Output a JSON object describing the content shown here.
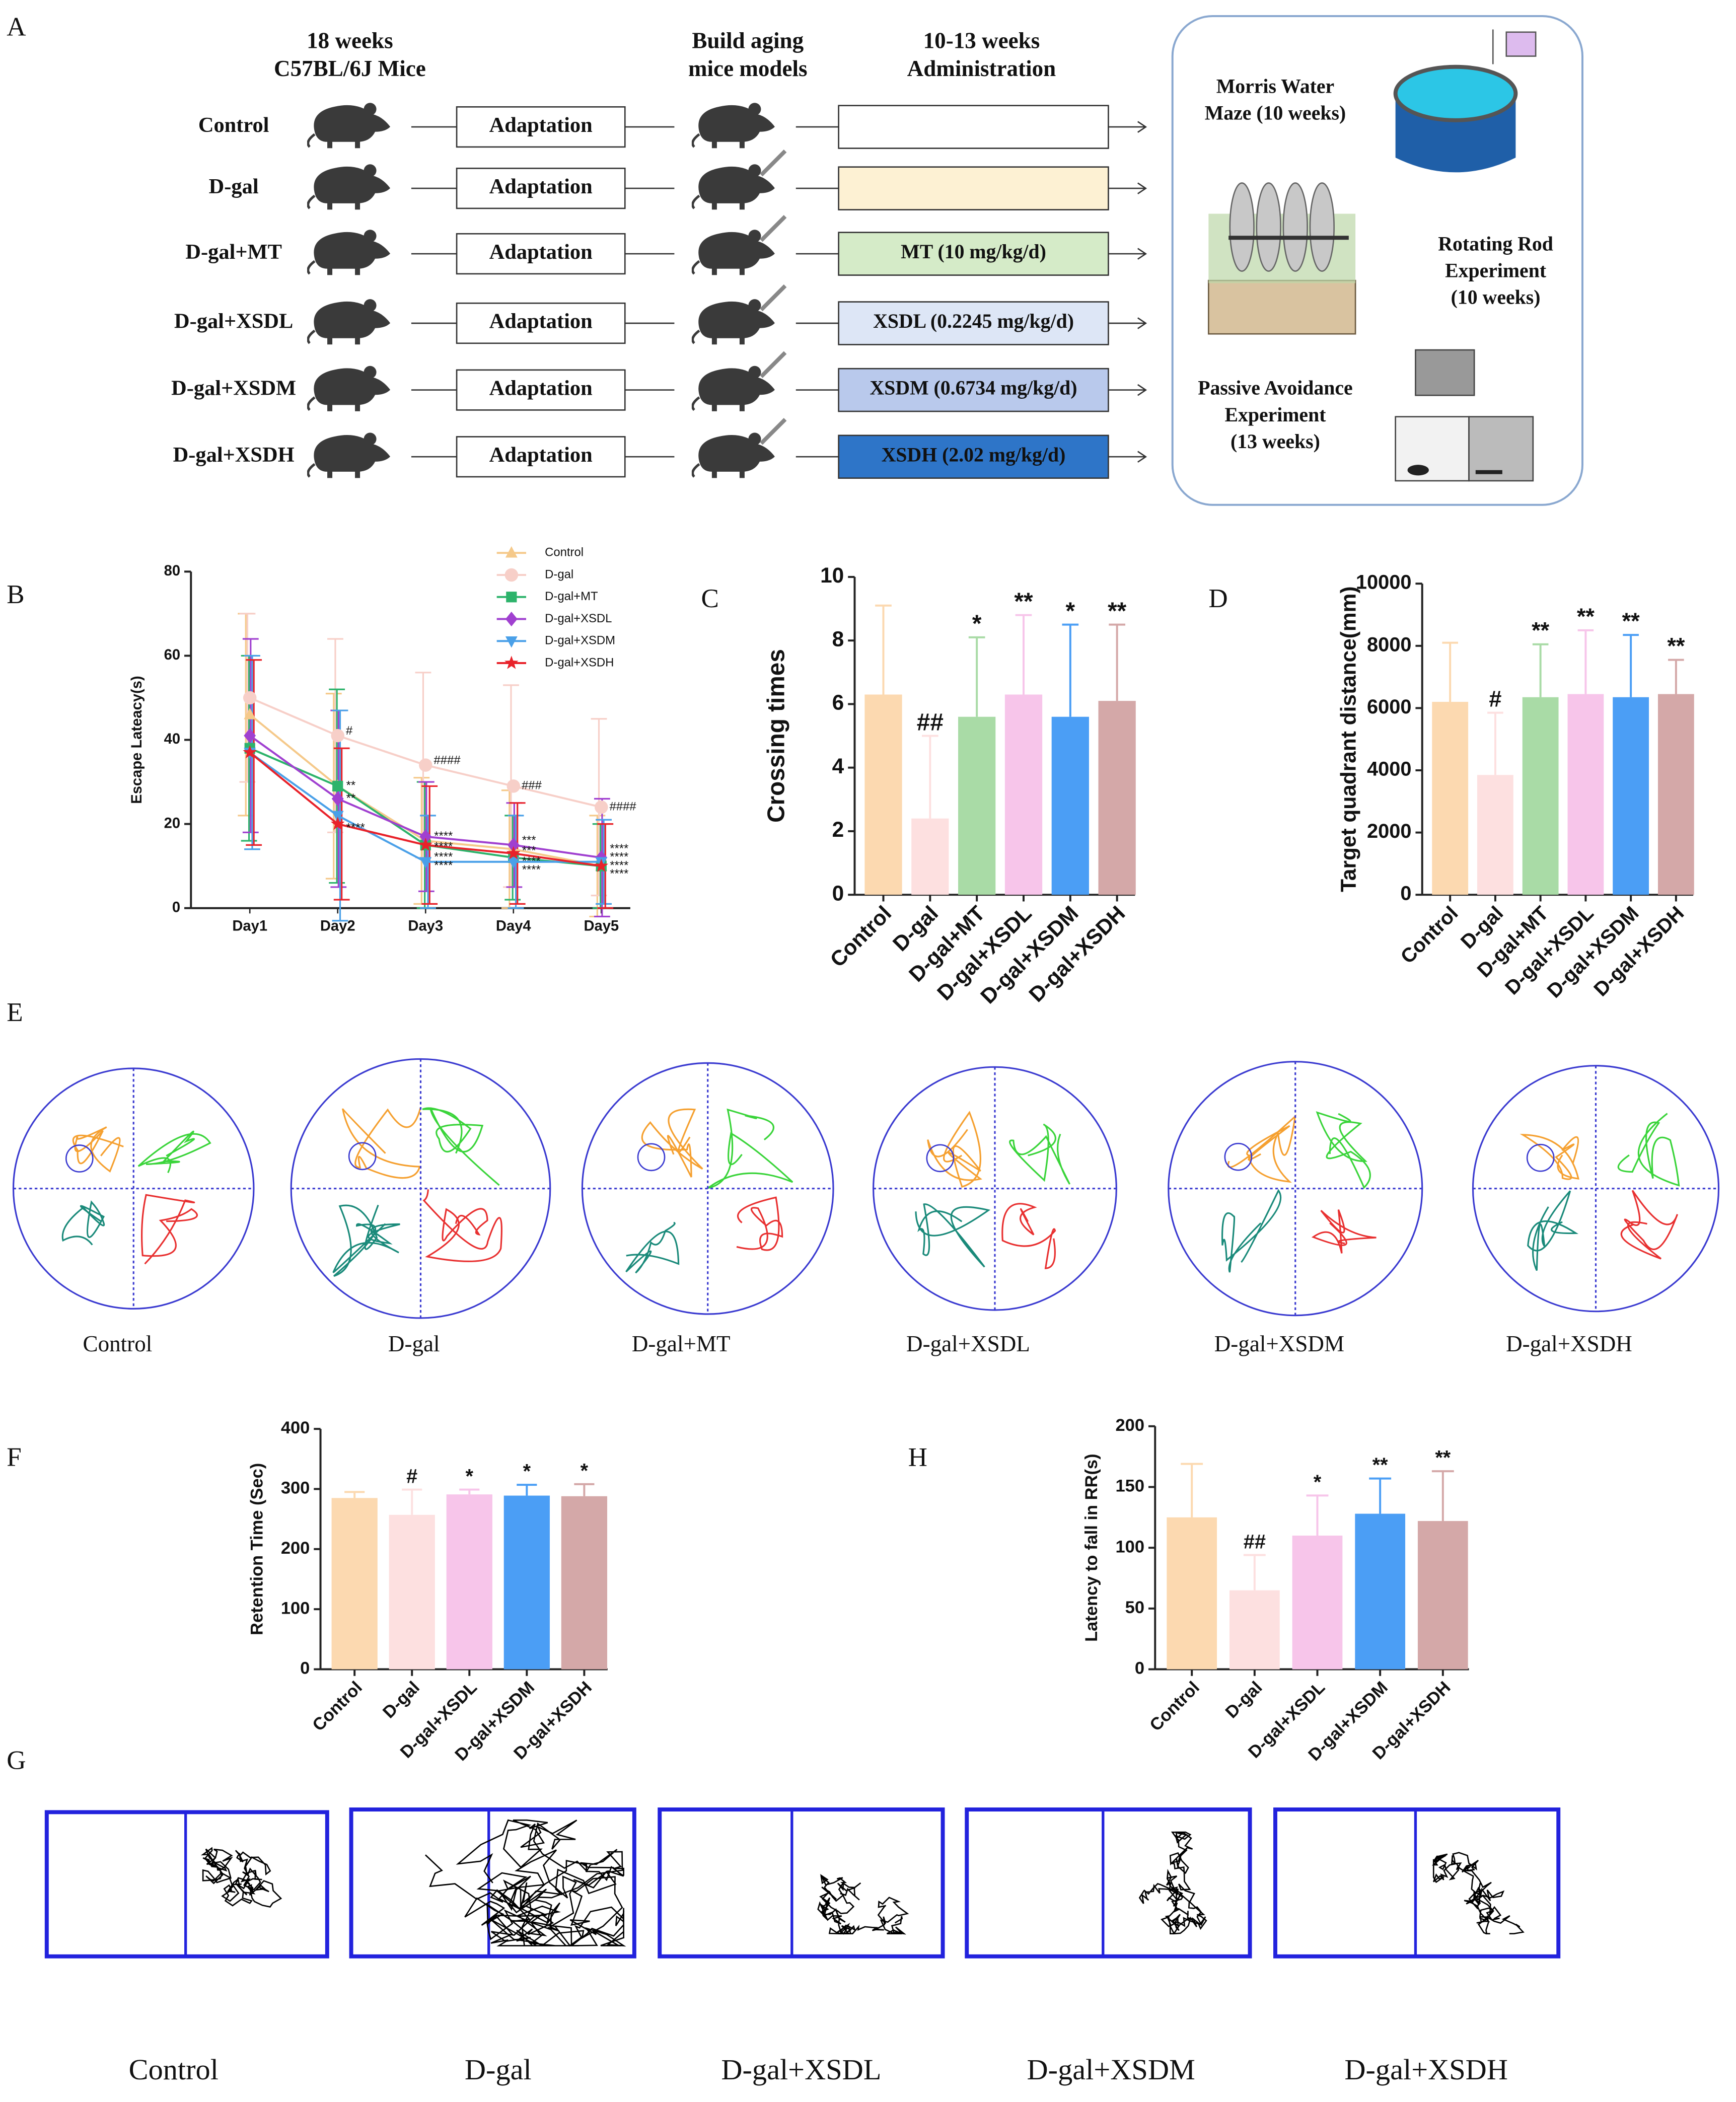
{
  "schematic": {
    "panel": "A",
    "headers": [
      [
        "18 weeks",
        "C57BL/6J Mice"
      ],
      [
        "Build aging",
        "mice models"
      ],
      [
        "10-13 weeks",
        "Administration"
      ]
    ],
    "step": "Adaptation",
    "groups": [
      {
        "name": "Control",
        "color": "#ffffff"
      },
      {
        "name": "D-gal",
        "color": "#fdf1d3"
      },
      {
        "name": "D-gal+MT",
        "treatment": "MT (10 mg/kg/d)",
        "color": "#d5ebc8"
      },
      {
        "name": "D-gal+XSDL",
        "treatment": "XSDL (0.2245 mg/kg/d)",
        "color": "#dde6f6"
      },
      {
        "name": "D-gal+XSDM",
        "treatment": "XSDM (0.6734 mg/kg/d)",
        "color": "#b9c9ec"
      },
      {
        "name": "D-gal+XSDH",
        "treatment": "XSDH (2.02 mg/kg/d)",
        "color": "#2e75c8"
      }
    ],
    "tests": [
      [
        "Morris Water",
        "Maze (10 weeks)"
      ],
      [
        "Rotating Rod",
        "Experiment",
        "(10 weeks)"
      ],
      [
        "Passive Avoidance",
        "Experiment",
        "(13 weeks)"
      ]
    ]
  },
  "chart_data": [
    {
      "type": "line",
      "panel": "B",
      "y_label": "Escape Lateacy(s)",
      "categories": [
        "Day1",
        "Day2",
        "Day3",
        "Day4",
        "Day5"
      ],
      "ylim": [
        0,
        80
      ],
      "yticks": [
        0,
        20,
        40,
        60,
        80
      ],
      "series": [
        {
          "name": "Control",
          "color": "#f5c98a",
          "marker": "triangle",
          "values": [
            46,
            29,
            16,
            14,
            10
          ],
          "errors": [
            24,
            22,
            15,
            14,
            12
          ]
        },
        {
          "name": "D-gal",
          "color": "#f7cfc8",
          "marker": "circle",
          "values": [
            50,
            41,
            34,
            29,
            24
          ],
          "errors": [
            20,
            23,
            22,
            24,
            21
          ]
        },
        {
          "name": "D-gal+MT",
          "color": "#2db36b",
          "marker": "square",
          "values": [
            38,
            29,
            15,
            12,
            10
          ],
          "errors": [
            22,
            23,
            15,
            10,
            10
          ]
        },
        {
          "name": "D-gal+XSDL",
          "color": "#a040d0",
          "marker": "diamond",
          "values": [
            41,
            26,
            17,
            15,
            12
          ],
          "errors": [
            23,
            21,
            13,
            10,
            14
          ]
        },
        {
          "name": "D-gal+XSDM",
          "color": "#4aa0e8",
          "marker": "down-triangle",
          "values": [
            37,
            22,
            11,
            11,
            11
          ],
          "errors": [
            23,
            25,
            11,
            11,
            10
          ]
        },
        {
          "name": "D-gal+XSDH",
          "color": "#e8222a",
          "marker": "star",
          "values": [
            37,
            20,
            15,
            13,
            10
          ],
          "errors": [
            22,
            18,
            14,
            12,
            10
          ]
        }
      ],
      "annotations": [
        {
          "text": "#",
          "category": 1,
          "y": 42
        },
        {
          "text": "####",
          "category": 2,
          "y": 35
        },
        {
          "text": "###",
          "category": 3,
          "y": 29
        },
        {
          "text": "####",
          "category": 4,
          "y": 24
        },
        {
          "text": "**",
          "category": 1,
          "y": 29
        },
        {
          "text": "**",
          "category": 1,
          "y": 26
        },
        {
          "text": "****",
          "category": 1,
          "y": 19
        },
        {
          "text": "****",
          "category": 2,
          "y": 17
        },
        {
          "text": "****",
          "category": 2,
          "y": 14.5
        },
        {
          "text": "****",
          "category": 2,
          "y": 12
        },
        {
          "text": "****",
          "category": 2,
          "y": 10
        },
        {
          "text": "***",
          "category": 3,
          "y": 16
        },
        {
          "text": "***",
          "category": 3,
          "y": 13.5
        },
        {
          "text": "****",
          "category": 3,
          "y": 11
        },
        {
          "text": "****",
          "category": 3,
          "y": 9
        },
        {
          "text": "****",
          "category": 4,
          "y": 14
        },
        {
          "text": "****",
          "category": 4,
          "y": 12
        },
        {
          "text": "****",
          "category": 4,
          "y": 10
        },
        {
          "text": "****",
          "category": 4,
          "y": 8
        }
      ]
    },
    {
      "type": "bar",
      "panel": "C",
      "y_label": "Crossing times",
      "categories": [
        "Control",
        "D-gal",
        "D-gal+MT",
        "D-gal+XSDL",
        "D-gal+XSDM",
        "D-gal+XSDH"
      ],
      "values": [
        6.3,
        2.4,
        5.6,
        6.3,
        5.6,
        6.1
      ],
      "errors": [
        2.8,
        2.6,
        2.5,
        2.5,
        2.9,
        2.4
      ],
      "significance": [
        null,
        "##",
        "*",
        "**",
        "*",
        "**"
      ],
      "colors": [
        "#fcd9b0",
        "#fde0e0",
        "#a9dba6",
        "#f7c5ea",
        "#4b9ef5",
        "#d4a8a8"
      ],
      "ylim": [
        0,
        10
      ],
      "yticks": [
        0,
        2,
        4,
        6,
        8,
        10
      ]
    },
    {
      "type": "bar",
      "panel": "D",
      "y_label": "Target quadrant distance(mm)",
      "categories": [
        "Control",
        "D-gal",
        "D-gal+MT",
        "D-gal+XSDL",
        "D-gal+XSDM",
        "D-gal+XSDH"
      ],
      "values": [
        6200,
        3850,
        6350,
        6450,
        6350,
        6450
      ],
      "errors": [
        1900,
        2000,
        1700,
        2050,
        2000,
        1100
      ],
      "significance": [
        null,
        "#",
        "**",
        "**",
        "**",
        "**"
      ],
      "colors": [
        "#fcd9b0",
        "#fde0e0",
        "#a9dba6",
        "#f7c5ea",
        "#4b9ef5",
        "#d4a8a8"
      ],
      "ylim": [
        0,
        10000
      ],
      "yticks": [
        0,
        2000,
        4000,
        6000,
        8000,
        10000
      ]
    },
    {
      "type": "bar",
      "panel": "F",
      "y_label": "Retention Time (Sec)",
      "categories": [
        "Control",
        "D-gal",
        "D-gal+XSDL",
        "D-gal+XSDM",
        "D-gal+XSDH"
      ],
      "values": [
        285,
        257,
        291,
        289,
        288
      ],
      "errors": [
        10,
        42,
        8,
        18,
        20
      ],
      "significance": [
        null,
        "#",
        "*",
        "*",
        "*"
      ],
      "colors": [
        "#fcd9b0",
        "#fde0e0",
        "#f7c5ea",
        "#4b9ef5",
        "#d4a8a8"
      ],
      "ylim": [
        0,
        400
      ],
      "yticks": [
        0,
        100,
        200,
        300,
        400
      ]
    },
    {
      "type": "bar",
      "panel": "H",
      "y_label": "Latency to fall in RR(s)",
      "categories": [
        "Control",
        "D-gal",
        "D-gal+XSDL",
        "D-gal+XSDM",
        "D-gal+XSDH"
      ],
      "values": [
        125,
        65,
        110,
        128,
        122
      ],
      "errors": [
        44,
        29,
        33,
        29,
        41
      ],
      "significance": [
        null,
        "##",
        "*",
        "**",
        "**"
      ],
      "colors": [
        "#fcd9b0",
        "#fde0e0",
        "#f7c5ea",
        "#4b9ef5",
        "#d4a8a8"
      ],
      "ylim": [
        0,
        200
      ],
      "yticks": [
        0,
        50,
        100,
        150,
        200
      ]
    }
  ],
  "morris": {
    "panel": "E",
    "labels": [
      "Control",
      "D-gal",
      "D-gal+MT",
      "D-gal+XSDL",
      "D-gal+XSDM",
      "D-gal+XSDH"
    ]
  },
  "passive": {
    "panel": "G",
    "labels": [
      "Control",
      "D-gal",
      "D-gal+XSDL",
      "D-gal+XSDM",
      "D-gal+XSDH"
    ]
  }
}
